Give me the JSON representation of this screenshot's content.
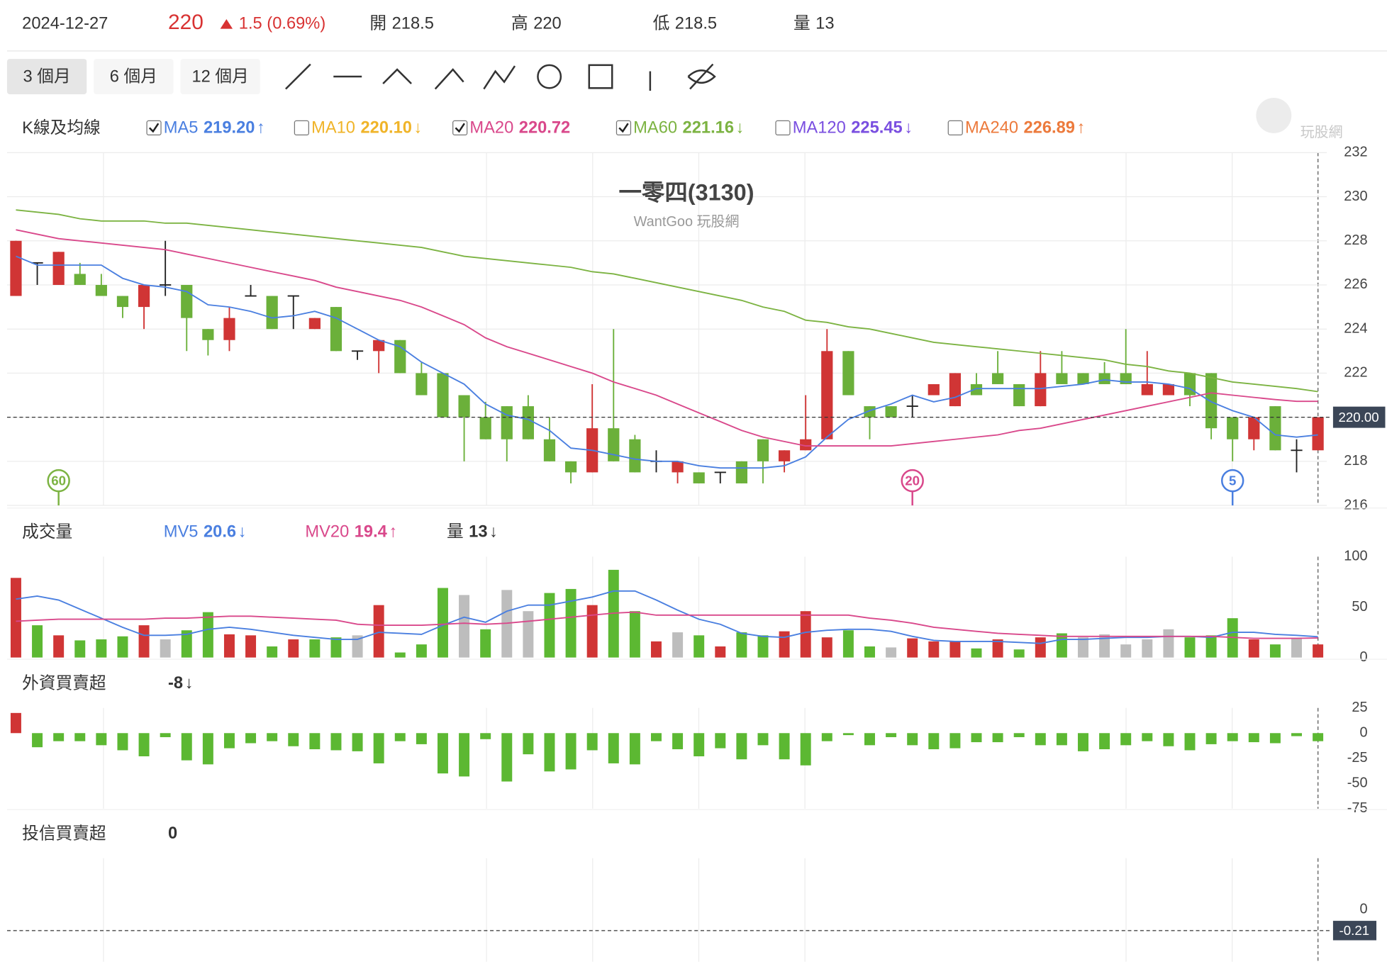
{
  "header": {
    "date": "2024-12-27",
    "price": "220",
    "change": "1.5 (0.69%)",
    "stats": [
      {
        "label": "開",
        "value": "218.5"
      },
      {
        "label": "高",
        "value": "220"
      },
      {
        "label": "低",
        "value": "218.5"
      },
      {
        "label": "量",
        "value": "13"
      }
    ]
  },
  "toolbar": {
    "ranges": [
      "3 個月",
      "6 個月",
      "12 個月"
    ],
    "selected": 0
  },
  "logo": "玩股網",
  "chart_data": [
    {
      "type": "candlestick",
      "title": "一零四(3130)",
      "subtitle": "WantGoo 玩股網",
      "label": "K線及均線",
      "open": [
        225.5,
        227,
        226,
        226.5,
        226,
        225.5,
        225,
        226,
        226,
        224,
        223.5,
        225.5,
        225.5,
        225.5,
        224,
        225,
        223,
        223,
        223.5,
        222,
        222,
        221,
        220,
        220.5,
        220.5,
        219,
        218,
        217.5,
        219.5,
        219,
        218,
        217.5,
        217.5,
        217.5,
        218,
        219,
        218,
        218.5,
        219,
        223,
        220.5,
        220.5,
        220.5,
        221,
        220.5,
        221.5,
        222,
        221.5,
        220.5,
        222,
        222,
        222,
        222,
        221,
        221,
        222,
        222,
        220,
        219,
        220.5,
        218.5,
        218.5
      ],
      "high": [
        228,
        227,
        227.5,
        227,
        226.5,
        225.5,
        226,
        228,
        226,
        224,
        225,
        226,
        225.5,
        225.5,
        224.5,
        225,
        223,
        223.5,
        223.5,
        222.5,
        222,
        221,
        220.7,
        220.5,
        221,
        220,
        218,
        221.5,
        224,
        219.2,
        218.5,
        218,
        217.5,
        217.5,
        218,
        219,
        218.5,
        221,
        224,
        223,
        220.5,
        220.5,
        221,
        221.5,
        222,
        222,
        223,
        221.5,
        223,
        223,
        222,
        222.5,
        224,
        223,
        221.5,
        222,
        222,
        220,
        220,
        220.5,
        219,
        220
      ],
      "low": [
        225.5,
        226,
        226,
        226,
        225.5,
        224.5,
        224,
        225.5,
        223,
        222.8,
        223,
        225.5,
        224,
        224,
        224,
        223,
        222.6,
        222,
        222,
        221,
        220,
        218,
        219,
        218,
        219,
        218,
        217,
        217.5,
        218,
        217.5,
        217.5,
        217,
        217,
        217,
        217,
        217,
        217.5,
        218.5,
        219,
        221,
        219,
        220,
        220,
        221,
        220.5,
        221,
        221.5,
        220.5,
        220.5,
        221.5,
        221.5,
        221.5,
        221.5,
        221,
        221,
        220.5,
        219,
        218,
        218.5,
        218.5,
        217.5,
        218.5
      ],
      "close": [
        228,
        227,
        227.5,
        226,
        225.5,
        225,
        226,
        226,
        224.5,
        223.5,
        224.5,
        225.5,
        224,
        225.5,
        224.5,
        223,
        223,
        223.5,
        222,
        221,
        220,
        220,
        219,
        219,
        219,
        218,
        217.5,
        219.5,
        218,
        217.5,
        218,
        218,
        217,
        217.5,
        217,
        218,
        218.5,
        219,
        223,
        221,
        220,
        220,
        220.5,
        221.5,
        222,
        221,
        221.5,
        220.5,
        222,
        221.5,
        221.5,
        221.5,
        221.5,
        221.5,
        221.5,
        221,
        219.5,
        219,
        220,
        218.5,
        218.5,
        220
      ],
      "up_color": "#d03535",
      "down_color": "#6bb03a",
      "flat_color": "#222222",
      "ylim": [
        216,
        232
      ],
      "yticks": [
        216,
        218,
        220,
        222,
        224,
        226,
        228,
        230,
        232
      ],
      "grid": true,
      "last_price": 220,
      "last_price_label": "220.00",
      "series": [
        {
          "name": "MA5",
          "color": "#4a7fe0",
          "checked": true,
          "value_label": "219.20",
          "trend": "↑",
          "values": [
            227.3,
            226.9,
            226.9,
            226.9,
            226.9,
            226.3,
            226.0,
            225.9,
            225.7,
            225.1,
            225.0,
            224.8,
            224.5,
            224.6,
            224.8,
            224.5,
            224.0,
            223.5,
            223.2,
            222.5,
            222.0,
            221.5,
            220.6,
            220.1,
            219.9,
            219.4,
            218.6,
            218.5,
            218.3,
            218.1,
            218.0,
            218.0,
            217.8,
            217.7,
            217.7,
            217.7,
            217.8,
            218.2,
            219.1,
            219.9,
            220.3,
            220.6,
            221.0,
            220.7,
            220.9,
            221.3,
            221.3,
            221.3,
            221.3,
            221.4,
            221.5,
            221.7,
            221.6,
            221.6,
            221.5,
            221.3,
            220.7,
            220.3,
            220.0,
            219.2,
            219.1,
            219.2
          ]
        },
        {
          "name": "MA10",
          "color": "#f0b429",
          "checked": false,
          "value_label": "220.10",
          "trend": "↓"
        },
        {
          "name": "MA20",
          "color": "#d9488b",
          "checked": true,
          "value_label": "220.72",
          "values": [
            228.5,
            228.3,
            228.1,
            228.0,
            227.9,
            227.8,
            227.7,
            227.6,
            227.4,
            227.2,
            227.0,
            226.8,
            226.6,
            226.4,
            226.2,
            225.9,
            225.7,
            225.5,
            225.3,
            225.0,
            224.6,
            224.2,
            223.6,
            223.2,
            222.9,
            222.6,
            222.3,
            222.0,
            221.6,
            221.3,
            221.0,
            220.6,
            220.2,
            219.8,
            219.4,
            219.1,
            218.9,
            218.7,
            218.7,
            218.7,
            218.7,
            218.7,
            218.8,
            218.9,
            219.0,
            219.1,
            219.2,
            219.4,
            219.5,
            219.7,
            219.9,
            220.1,
            220.3,
            220.5,
            220.7,
            220.9,
            221.1,
            221.0,
            220.9,
            220.8,
            220.72,
            220.72
          ]
        },
        {
          "name": "MA60",
          "color": "#7cb342",
          "checked": true,
          "value_label": "221.16",
          "trend": "↓",
          "values": [
            229.4,
            229.3,
            229.2,
            229.0,
            228.9,
            228.9,
            228.9,
            228.8,
            228.8,
            228.7,
            228.6,
            228.5,
            228.4,
            228.3,
            228.2,
            228.1,
            228.0,
            227.9,
            227.8,
            227.7,
            227.5,
            227.3,
            227.2,
            227.1,
            227.0,
            226.9,
            226.8,
            226.6,
            226.5,
            226.3,
            226.1,
            225.9,
            225.7,
            225.5,
            225.3,
            225.0,
            224.8,
            224.4,
            224.3,
            224.1,
            224.0,
            223.8,
            223.6,
            223.4,
            223.3,
            223.2,
            223.1,
            223.0,
            222.9,
            222.8,
            222.7,
            222.6,
            222.4,
            222.3,
            222.1,
            222.0,
            221.8,
            221.6,
            221.5,
            221.4,
            221.3,
            221.16
          ]
        },
        {
          "name": "MA120",
          "color": "#7a4fe0",
          "checked": false,
          "value_label": "225.45",
          "trend": "↓"
        },
        {
          "name": "MA240",
          "color": "#ec7a3c",
          "checked": false,
          "value_label": "226.89",
          "trend": "↑"
        }
      ],
      "annotations": [
        {
          "label": "60",
          "at": 2,
          "color": "#7cb342"
        },
        {
          "label": "20",
          "at": 42,
          "color": "#d9488b"
        },
        {
          "label": "5",
          "at": 57,
          "color": "#4a7fe0"
        }
      ]
    },
    {
      "type": "bar",
      "label": "成交量",
      "values": [
        79,
        32,
        22,
        17,
        18,
        21,
        32,
        18,
        27,
        45,
        23,
        22,
        11,
        18,
        18,
        20,
        22,
        52,
        5,
        13,
        69,
        62,
        28,
        67,
        46,
        64,
        68,
        52,
        87,
        46,
        16,
        25,
        22,
        11,
        25,
        22,
        26,
        46,
        20,
        27,
        11,
        10,
        19,
        16,
        16,
        9,
        18,
        8,
        20,
        24,
        20,
        23,
        13,
        18,
        28,
        20,
        22,
        39,
        18,
        13,
        19,
        13
      ],
      "colors": [
        "#d03535",
        "#5cb832",
        "#d03535",
        "#5cb832",
        "#5cb832",
        "#5cb832",
        "#d03535",
        "#bdbdbd",
        "#5cb832",
        "#5cb832",
        "#d03535",
        "#d03535",
        "#5cb832",
        "#d03535",
        "#5cb832",
        "#5cb832",
        "#bdbdbd",
        "#d03535",
        "#5cb832",
        "#5cb832",
        "#5cb832",
        "#bdbdbd",
        "#5cb832",
        "#bdbdbd",
        "#bdbdbd",
        "#5cb832",
        "#5cb832",
        "#d03535",
        "#5cb832",
        "#5cb832",
        "#d03535",
        "#bdbdbd",
        "#5cb832",
        "#d03535",
        "#5cb832",
        "#5cb832",
        "#d03535",
        "#d03535",
        "#d03535",
        "#5cb832",
        "#5cb832",
        "#bdbdbd",
        "#d03535",
        "#d03535",
        "#d03535",
        "#5cb832",
        "#d03535",
        "#5cb832",
        "#d03535",
        "#5cb832",
        "#bdbdbd",
        "#bdbdbd",
        "#bdbdbd",
        "#bdbdbd",
        "#bdbdbd",
        "#5cb832",
        "#5cb832",
        "#5cb832",
        "#d03535",
        "#5cb832",
        "#bdbdbd",
        "#d03535"
      ],
      "ylim": [
        0,
        100
      ],
      "yticks": [
        0,
        50,
        100
      ],
      "series": [
        {
          "name": "MV5",
          "color": "#4a7fe0",
          "value_label": "20.6",
          "trend": "↓",
          "values": [
            58,
            61,
            57,
            48,
            39,
            30,
            22,
            22,
            23,
            28,
            30,
            28,
            25,
            22,
            20,
            18,
            18,
            25,
            24,
            23,
            32,
            40,
            35,
            46,
            52,
            52,
            56,
            60,
            66,
            66,
            57,
            47,
            38,
            33,
            24,
            21,
            20,
            25,
            27,
            28,
            28,
            26,
            21,
            17,
            16,
            16,
            16,
            15,
            14,
            18,
            18,
            19,
            20,
            20,
            21,
            21,
            20,
            25,
            25,
            23,
            22,
            20.6
          ]
        },
        {
          "name": "MV20",
          "color": "#d9488b",
          "value_label": "19.4",
          "trend": "↑",
          "values": [
            36,
            37,
            38,
            38,
            38,
            38,
            38,
            39,
            39,
            40,
            41,
            41,
            40,
            39,
            38,
            37,
            33,
            32,
            32,
            32,
            33,
            34,
            33,
            34,
            36,
            38,
            40,
            42,
            44,
            45,
            42,
            42,
            42,
            42,
            42,
            42,
            42,
            42,
            42,
            42,
            39,
            37,
            34,
            30,
            28,
            26,
            24,
            23,
            22,
            21,
            21,
            21,
            21,
            21,
            21,
            21,
            21,
            20,
            19,
            19,
            19,
            19.4
          ]
        }
      ],
      "stat": {
        "name": "量",
        "value_label": "13",
        "trend": "↓"
      }
    },
    {
      "type": "bar",
      "label": "外資買賣超",
      "value_label": "-8",
      "trend": "↓",
      "values": [
        20,
        -14,
        -8,
        -8,
        -12,
        -17,
        -23,
        -4,
        -27,
        -31,
        -15,
        -10,
        -8,
        -13,
        -16,
        -17,
        -18,
        -30,
        -8,
        -11,
        -40,
        -43,
        -6,
        -48,
        -21,
        -38,
        -36,
        -17,
        -30,
        -31,
        -8,
        -16,
        -23,
        -15,
        -26,
        -12,
        -26,
        -32,
        -8,
        -2,
        -12,
        -4,
        -12,
        -16,
        -15,
        -9,
        -9,
        -4,
        -12,
        -12,
        -18,
        -16,
        -12,
        -8,
        -13,
        -17,
        -11,
        -8,
        -9,
        -10,
        -3,
        -8
      ],
      "positive_color": "#d03535",
      "negative_color": "#5cb832",
      "ylim": [
        -75,
        25
      ],
      "yticks": [
        -75,
        -50,
        -25,
        0,
        25
      ]
    },
    {
      "type": "bar",
      "label": "投信買賣超",
      "value_label": "0",
      "ylim": [
        -0.52,
        0.51
      ],
      "yticks": [
        0
      ],
      "reference": -0.21,
      "reference_label": "-0.21"
    }
  ]
}
